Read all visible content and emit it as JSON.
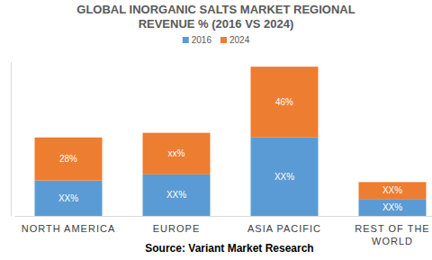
{
  "chart_data": {
    "type": "bar",
    "title": "GLOBAL INORGANIC SALTS MARKET REGIONAL REVENUE % (2016 VS 2024)",
    "categories": [
      "NORTH AMERICA",
      "EUROPE",
      "ASIA PACIFIC",
      "REST OF THE WORLD"
    ],
    "series": [
      {
        "name": "2016",
        "color": "#5b9bd5",
        "values": [
          23,
          27,
          51,
          11
        ],
        "value_labels": [
          "XX%",
          "XX%",
          "XX%",
          "XX%"
        ]
      },
      {
        "name": "2024",
        "color": "#ed7d31",
        "values": [
          28,
          27,
          46,
          11
        ],
        "value_labels": [
          "28%",
          "xx%",
          "46%",
          "XX%"
        ]
      }
    ],
    "stacked": true,
    "data_labels": true,
    "legend": "top",
    "grid": false,
    "ylim": [
      0,
      100
    ],
    "yticks": [
      0,
      100
    ],
    "tick_labels": "x",
    "annotations": [
      "Source: Variant Market Research"
    ]
  }
}
